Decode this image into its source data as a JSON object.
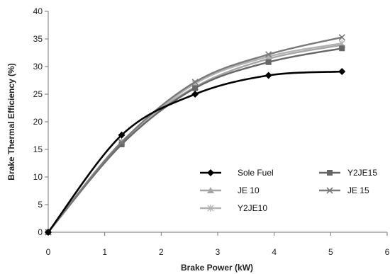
{
  "chart_data": {
    "type": "line",
    "title": "",
    "xlabel": "Brake Power (kW)",
    "ylabel": "Brake Thermal Efficiency (%)",
    "xlim": [
      0,
      6
    ],
    "ylim": [
      0,
      40
    ],
    "xticks": [
      0,
      1,
      2,
      3,
      4,
      5,
      6
    ],
    "yticks": [
      0,
      5,
      10,
      15,
      20,
      25,
      30,
      35,
      40
    ],
    "grid": false,
    "legend_position": "bottom-right",
    "series": [
      {
        "name": "Sole Fuel",
        "color": "#000000",
        "marker": "diamond",
        "x": [
          0,
          1.3,
          2.6,
          3.9,
          5.2
        ],
        "y": [
          0,
          17.6,
          25.0,
          28.4,
          29.1
        ]
      },
      {
        "name": "JE 10",
        "color": "#a6a6a6",
        "marker": "triangle",
        "x": [
          0,
          1.3,
          2.6,
          3.9,
          5.2
        ],
        "y": [
          0,
          16.4,
          26.3,
          31.4,
          33.9
        ]
      },
      {
        "name": "Y2JE10",
        "color": "#b3b3b3",
        "marker": "star",
        "x": [
          0,
          1.3,
          2.6,
          3.9,
          5.2
        ],
        "y": [
          0,
          16.1,
          26.9,
          31.8,
          34.2
        ]
      },
      {
        "name": "Y2JE15",
        "color": "#666666",
        "marker": "square",
        "x": [
          0,
          1.3,
          2.6,
          3.9,
          5.2
        ],
        "y": [
          0,
          15.9,
          26.1,
          30.8,
          33.3
        ]
      },
      {
        "name": "JE 15",
        "color": "#7a7a7a",
        "marker": "x",
        "x": [
          0,
          1.3,
          2.6,
          3.9,
          5.2
        ],
        "y": [
          0,
          16.3,
          27.2,
          32.2,
          35.3
        ]
      }
    ],
    "legend_columns": [
      [
        "Sole Fuel",
        "JE 10",
        "Y2JE10"
      ],
      [
        "Y2JE15",
        "JE 15"
      ]
    ]
  }
}
